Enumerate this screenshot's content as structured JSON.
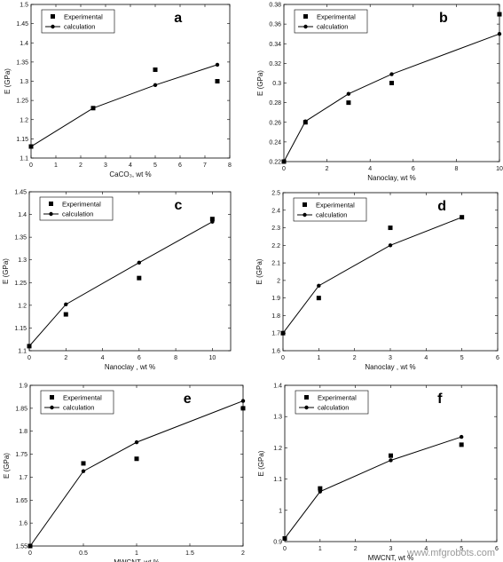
{
  "watermark": "www.mfgrobots.com",
  "chart_data": [
    {
      "type": "line",
      "panel_label": "a",
      "xlabel": "CaCO₃, wt %",
      "ylabel": "E (GPa)",
      "xlim": [
        0,
        8
      ],
      "ylim": [
        1.1,
        1.5
      ],
      "xticks": [
        "0",
        "1",
        "2",
        "3",
        "4",
        "5",
        "6",
        "7",
        "8"
      ],
      "yticks": [
        "1.1",
        "1.15",
        "1.2",
        "1.25",
        "1.3",
        "1.35",
        "1.4",
        "1.45",
        "1.5"
      ],
      "legend": {
        "position": "top-left",
        "entries": [
          "Experimental",
          "calculation"
        ]
      },
      "series": [
        {
          "name": "Experimental",
          "marker": "square",
          "x": [
            0,
            2.5,
            5,
            7.5
          ],
          "y": [
            1.13,
            1.23,
            1.33,
            1.3
          ]
        },
        {
          "name": "calculation",
          "marker": "circle-line",
          "x": [
            0,
            2.5,
            5,
            7.5
          ],
          "y": [
            1.13,
            1.23,
            1.29,
            1.343
          ]
        }
      ]
    },
    {
      "type": "line",
      "panel_label": "b",
      "xlabel": "Nanoclay, wt %",
      "ylabel": "E (GPa)",
      "xlim": [
        0,
        10
      ],
      "ylim": [
        0.22,
        0.38
      ],
      "xticks": [
        "0",
        "2",
        "4",
        "6",
        "8",
        "10"
      ],
      "yticks": [
        "0.22",
        "0.24",
        "0.26",
        "0.28",
        "0.3",
        "0.32",
        "0.34",
        "0.36",
        "0.38"
      ],
      "legend": {
        "position": "top-left",
        "entries": [
          "Experimental",
          "calculation"
        ]
      },
      "series": [
        {
          "name": "Experimental",
          "marker": "square",
          "x": [
            0,
            1,
            3,
            5,
            10
          ],
          "y": [
            0.22,
            0.26,
            0.28,
            0.3,
            0.37
          ]
        },
        {
          "name": "calculation",
          "marker": "circle-line",
          "x": [
            0,
            1,
            3,
            5,
            10
          ],
          "y": [
            0.22,
            0.261,
            0.289,
            0.309,
            0.35
          ]
        }
      ]
    },
    {
      "type": "line",
      "panel_label": "c",
      "xlabel": "Nanoclay , wt %",
      "ylabel": "E (GPa)",
      "xlim": [
        0,
        11
      ],
      "ylim": [
        1.1,
        1.45
      ],
      "xticks": [
        "0",
        "2",
        "4",
        "6",
        "8",
        "10"
      ],
      "yticks": [
        "1.1",
        "1.15",
        "1.2",
        "1.25",
        "1.3",
        "1.35",
        "1.4",
        "1.45"
      ],
      "legend": {
        "position": "top-left",
        "entries": [
          "Experimental",
          "calculation"
        ]
      },
      "series": [
        {
          "name": "Experimental",
          "marker": "square",
          "x": [
            0,
            2,
            6,
            10
          ],
          "y": [
            1.11,
            1.18,
            1.26,
            1.39
          ]
        },
        {
          "name": "calculation",
          "marker": "circle-line",
          "x": [
            0,
            2,
            6,
            10
          ],
          "y": [
            1.11,
            1.202,
            1.294,
            1.384
          ]
        }
      ]
    },
    {
      "type": "line",
      "panel_label": "d",
      "xlabel": "Nanoclay , wt %",
      "ylabel": "E (GPa)",
      "xlim": [
        0,
        6
      ],
      "ylim": [
        1.6,
        2.5
      ],
      "xticks": [
        "0",
        "1",
        "2",
        "3",
        "4",
        "5",
        "6"
      ],
      "yticks": [
        "1.6",
        "1.7",
        "1.8",
        "1.9",
        "2",
        "2.1",
        "2.2",
        "2.3",
        "2.4",
        "2.5"
      ],
      "legend": {
        "position": "top-left",
        "entries": [
          "Experimental",
          "calculation"
        ]
      },
      "series": [
        {
          "name": "Experimental",
          "marker": "square",
          "x": [
            0,
            1,
            3,
            5
          ],
          "y": [
            1.7,
            1.9,
            2.3,
            2.36
          ]
        },
        {
          "name": "calculation",
          "marker": "circle-line",
          "x": [
            0,
            1,
            3,
            5
          ],
          "y": [
            1.7,
            1.97,
            2.2,
            2.36
          ]
        }
      ]
    },
    {
      "type": "line",
      "panel_label": "e",
      "xlabel": "MWCNT, wt %",
      "ylabel": "E (GPa)",
      "xlim": [
        0,
        2
      ],
      "ylim": [
        1.55,
        1.9
      ],
      "xticks": [
        "0",
        "0.5",
        "1",
        "1.5",
        "2"
      ],
      "yticks": [
        "1.55",
        "1.6",
        "1.65",
        "1.7",
        "1.75",
        "1.8",
        "1.85",
        "1.9"
      ],
      "legend": {
        "position": "top-left",
        "entries": [
          "Experimental",
          "calculation"
        ]
      },
      "series": [
        {
          "name": "Experimental",
          "marker": "square",
          "x": [
            0,
            0.5,
            1,
            2
          ],
          "y": [
            1.55,
            1.73,
            1.74,
            1.85
          ]
        },
        {
          "name": "calculation",
          "marker": "circle-line",
          "x": [
            0,
            0.5,
            1,
            2
          ],
          "y": [
            1.55,
            1.713,
            1.776,
            1.866
          ]
        }
      ]
    },
    {
      "type": "line",
      "panel_label": "f",
      "xlabel": "MWCNT, wt %",
      "ylabel": "E (GPa)",
      "xlim": [
        0,
        6
      ],
      "ylim": [
        0.9,
        1.4
      ],
      "xticks": [
        "0",
        "1",
        "2",
        "3",
        "4",
        "5",
        "6"
      ],
      "yticks": [
        "0.9",
        "1",
        "1.1",
        "1.2",
        "1.3",
        "1.4"
      ],
      "legend": {
        "position": "top-left",
        "entries": [
          "Experimental",
          "calculation"
        ]
      },
      "series": [
        {
          "name": "Experimental",
          "marker": "square",
          "x": [
            0,
            1,
            3,
            5
          ],
          "y": [
            0.91,
            1.07,
            1.175,
            1.21
          ]
        },
        {
          "name": "calculation",
          "marker": "circle-line",
          "x": [
            0,
            1,
            3,
            5
          ],
          "y": [
            0.91,
            1.06,
            1.16,
            1.235
          ]
        }
      ]
    }
  ]
}
